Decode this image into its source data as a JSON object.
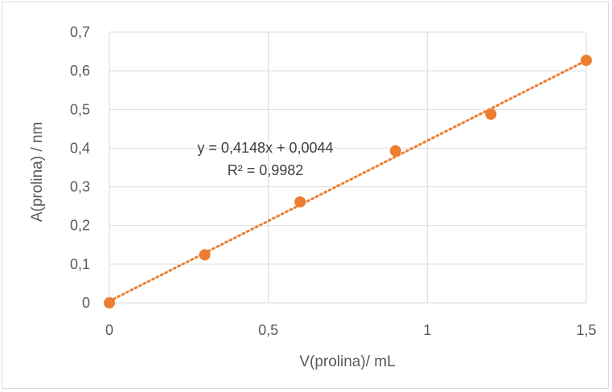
{
  "chart_data": {
    "type": "scatter",
    "xlabel": "V(prolina)/ mL",
    "ylabel": "A(prolina) / nm",
    "xlim": [
      0,
      1.5
    ],
    "ylim": [
      0,
      0.7
    ],
    "x_ticks": [
      "0",
      "0,5",
      "1",
      "1,5"
    ],
    "y_ticks": [
      "0",
      "0,1",
      "0,2",
      "0,3",
      "0,4",
      "0,5",
      "0,6",
      "0,7"
    ],
    "series": [
      {
        "x": [
          0,
          0.3,
          0.6,
          0.9,
          1.2,
          1.5
        ],
        "y": [
          0.0,
          0.124,
          0.261,
          0.393,
          0.488,
          0.627
        ]
      }
    ],
    "trendline": {
      "type": "linear",
      "slope": 0.4148,
      "intercept": 0.0044,
      "style": "dotted"
    },
    "equation_label": "y = 0,4148x + 0,0044",
    "r2_label": "R² = 0,9982",
    "grid": true,
    "legend": "none",
    "marker_color": "#ed7d31",
    "gridline_color": "#d9d9d9"
  }
}
